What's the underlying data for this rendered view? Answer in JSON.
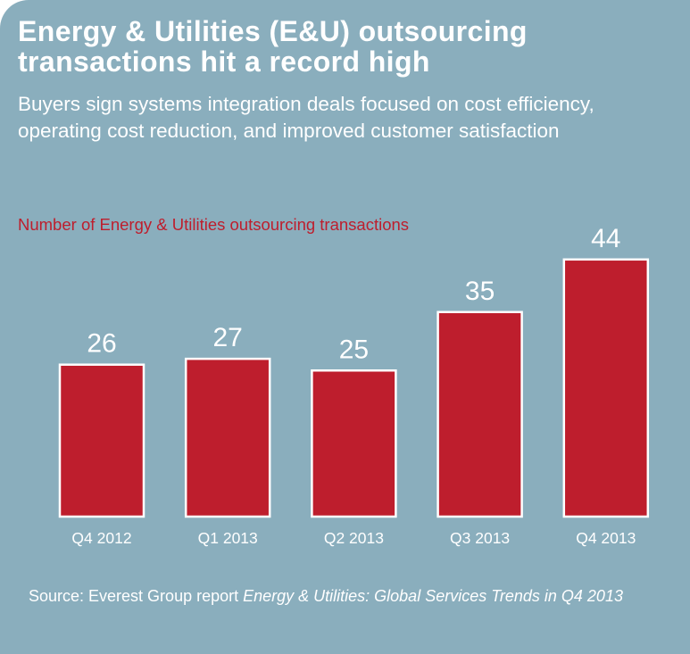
{
  "header": {
    "title": "Energy & Utilities (E&U) outsourcing transactions hit a record high",
    "subtitle": "Buyers sign systems integration deals focused on cost efficiency, operating cost reduction, and improved customer satisfaction"
  },
  "colors": {
    "background": "#8aaebd",
    "bar_fill": "#be1e2d",
    "bar_stroke": "#ffffff",
    "text": "#ffffff",
    "accent": "#be1e2d"
  },
  "chart_data": {
    "type": "bar",
    "title": "",
    "xlabel": "",
    "ylabel": "Number of Energy & Utilities outsourcing transactions",
    "categories": [
      "Q4 2012",
      "Q1 2013",
      "Q2 2013",
      "Q3 2013",
      "Q4 2013"
    ],
    "values": [
      26,
      27,
      25,
      35,
      44
    ],
    "data_labels": [
      "26",
      "27",
      "25",
      "35",
      "44"
    ],
    "grid": false,
    "legend": "none"
  },
  "footer": {
    "source_prefix": "Source: Everest Group report ",
    "source_title": "Energy & Utilities: Global Services Trends in Q4 2013"
  }
}
